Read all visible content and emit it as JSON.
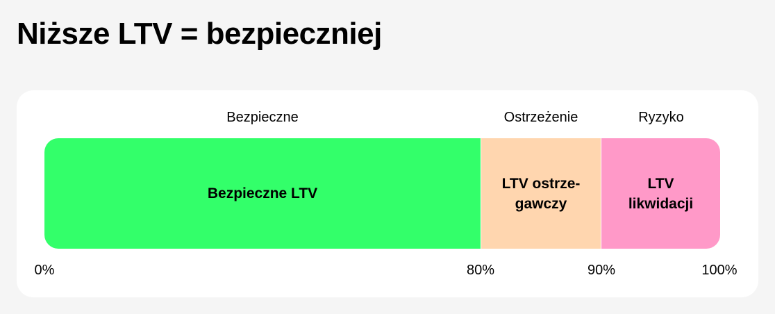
{
  "title": "Niższe LTV = bezpieczniej",
  "zones": [
    {
      "caption": "Bezpieczne",
      "label": "Bezpieczne LTV",
      "color": "#33FF6A"
    },
    {
      "caption": "Ostrzeżenie",
      "label": "LTV ostrze-gawczy",
      "color": "#FFD6AF"
    },
    {
      "caption": "Ryzyko",
      "label": "LTV likwidacji",
      "color": "#FF99C8"
    }
  ],
  "ticks": [
    "0%",
    "80%",
    "90%",
    "100%"
  ]
}
